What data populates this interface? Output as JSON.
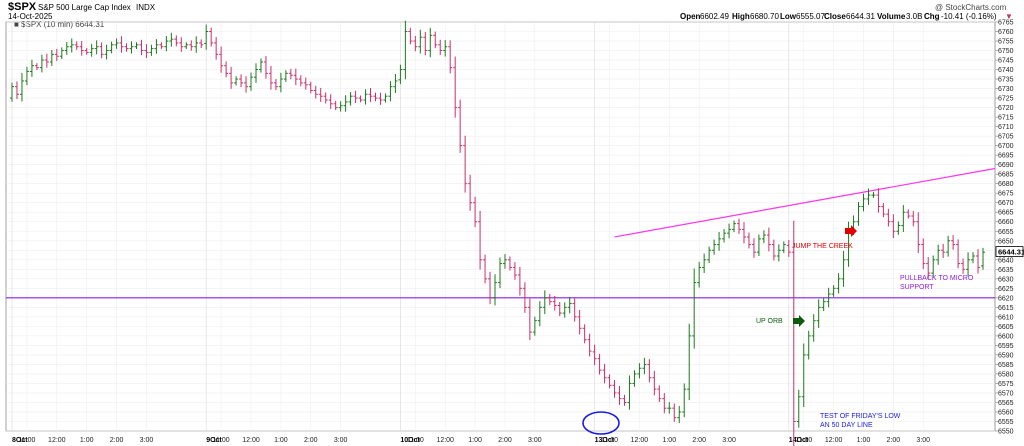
{
  "header": {
    "symbol": "$SPX",
    "name": "S&P 500 Large Cap Index",
    "exchange": "INDX",
    "date": "14-Oct-2025",
    "watermark": "@ StockCharts.com",
    "open_label": "Open",
    "open": "6602.49",
    "high_label": "High",
    "high": "6680.70",
    "low_label": "Low",
    "low": "6555.07",
    "close_label": "Close",
    "close": "6644.31",
    "volume_label": "Volume",
    "volume": "3.0B",
    "chg_label": "Chg",
    "chg": "-10.41 (-0.16%)",
    "chg_arrow": "▼",
    "legend": "■ $SPX (10 min) 6644.31"
  },
  "price_tag": "6644.31",
  "colors": {
    "up": "#1b7a1b",
    "down": "#cc2e6b",
    "support": "#8c1ee0",
    "trend": "#ff33ee",
    "circle": "#1a1ae6",
    "arrow_red": "#e00000",
    "arrow_green": "#0f5a0f"
  },
  "annotations": {
    "jump_creek": "JUMP THE CREEK",
    "pullback": "PULLBACK TO MICRO SUPPORT",
    "up_orb": "UP ORB",
    "test_low_1": "TEST OF FRIDAY'S LOW",
    "test_low_2": "AN 50 DAY LINE"
  },
  "chart_data": {
    "type": "candlestick",
    "title": "$SPX S&P 500 Large Cap Index INDX",
    "interval": "10 min",
    "ylim": [
      6550,
      6765
    ],
    "y_ticks": [
      6550,
      6555,
      6560,
      6565,
      6570,
      6575,
      6580,
      6585,
      6590,
      6595,
      6600,
      6605,
      6610,
      6615,
      6620,
      6625,
      6630,
      6635,
      6640,
      6645,
      6650,
      6655,
      6660,
      6665,
      6670,
      6675,
      6680,
      6685,
      6690,
      6695,
      6700,
      6705,
      6710,
      6715,
      6720,
      6725,
      6730,
      6735,
      6740,
      6745,
      6750,
      6755,
      6760,
      6765
    ],
    "x_labels": [
      "8Oct",
      "11:00",
      "12:00",
      "1:00",
      "2:00",
      "3:00",
      "9Oct",
      "11:00",
      "12:00",
      "1:00",
      "2:00",
      "3:00",
      "10Oct",
      "11:00",
      "12:00",
      "1:00",
      "2:00",
      "3:00",
      "13Oct",
      "11:00",
      "12:00",
      "1:00",
      "2:00",
      "3:00",
      "14Oct",
      "11:00",
      "12:00",
      "1:00",
      "2:00",
      "3:00"
    ],
    "bold_x_labels": [
      "8Oct",
      "9Oct",
      "10Oct",
      "13Oct",
      "14Oct"
    ],
    "bars_per_session": 39,
    "support_level": 6620,
    "closes": [
      6731,
      6727,
      6734,
      6739,
      6742,
      6741,
      6745,
      6744,
      6748,
      6747,
      6750,
      6752,
      6753,
      6752,
      6750,
      6749,
      6751,
      6752,
      6748,
      6750,
      6753,
      6754,
      6752,
      6751,
      6752,
      6753,
      6750,
      6749,
      6751,
      6753,
      6752,
      6755,
      6756,
      6754,
      6752,
      6753,
      6752,
      6754,
      6753,
      6760,
      6754,
      6748,
      6742,
      6738,
      6733,
      6735,
      6733,
      6731,
      6736,
      6740,
      6744,
      6738,
      6733,
      6731,
      6735,
      6738,
      6737,
      6735,
      6733,
      6732,
      6729,
      6727,
      6726,
      6724,
      6722,
      6720,
      6721,
      6723,
      6726,
      6725,
      6724,
      6727,
      6726,
      6725,
      6724,
      6726,
      6731,
      6734,
      6740,
      6760,
      6755,
      6752,
      6757,
      6750,
      6758,
      6753,
      6750,
      6752,
      6741,
      6720,
      6700,
      6680,
      6670,
      6660,
      6640,
      6630,
      6620,
      6628,
      6638,
      6640,
      6636,
      6632,
      6625,
      6615,
      6602,
      6608,
      6615,
      6620,
      6618,
      6616,
      6612,
      6615,
      6617,
      6610,
      6604,
      6598,
      6592,
      6588,
      6582,
      6578,
      6574,
      6570,
      6567,
      6565,
      6575,
      6580,
      6583,
      6585,
      6578,
      6572,
      6567,
      6562,
      6562,
      6557,
      6560,
      6572,
      6600,
      6628,
      6636,
      6640,
      6645,
      6648,
      6651,
      6654,
      6656,
      6659,
      6656,
      6652,
      6648,
      6644,
      6651,
      6653,
      6648,
      6642,
      6645,
      6648,
      6644,
      6555,
      6568,
      6590,
      6600,
      6608,
      6615,
      6618,
      6622,
      6625,
      6630,
      6640,
      6656,
      6660,
      6668,
      6672,
      6674,
      6674,
      6668,
      6664,
      6660,
      6655,
      6658,
      6665,
      6663,
      6660,
      6648,
      6638,
      6633,
      6640,
      6645,
      6644,
      6650,
      6648,
      6638,
      6635,
      6640,
      6642,
      6636,
      6644
    ],
    "trendline_start": 6652,
    "trendline_end": 6688,
    "markers": [
      "red arrow near JUMP THE CREEK",
      "green arrow near UP ORB",
      "blue circle at 13Oct session low"
    ]
  }
}
